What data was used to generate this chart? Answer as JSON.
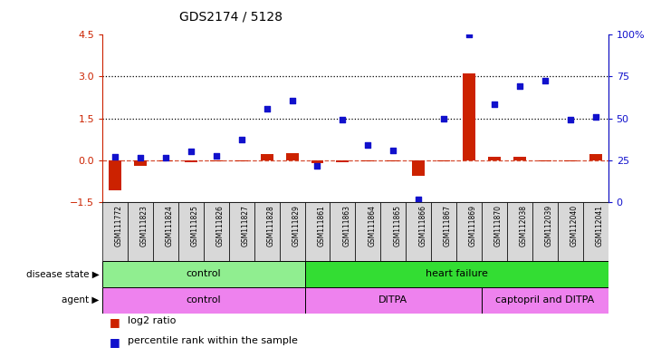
{
  "title": "GDS2174 / 5128",
  "samples": [
    "GSM111772",
    "GSM111823",
    "GSM111824",
    "GSM111825",
    "GSM111826",
    "GSM111827",
    "GSM111828",
    "GSM111829",
    "GSM111861",
    "GSM111863",
    "GSM111864",
    "GSM111865",
    "GSM111866",
    "GSM111867",
    "GSM111869",
    "GSM111870",
    "GSM112038",
    "GSM112039",
    "GSM112040",
    "GSM112041"
  ],
  "log2_ratio": [
    -1.1,
    -0.2,
    -0.05,
    -0.07,
    -0.06,
    -0.05,
    0.2,
    0.25,
    -0.1,
    -0.07,
    -0.05,
    -0.06,
    -0.55,
    -0.04,
    3.1,
    0.12,
    0.12,
    -0.04,
    -0.06,
    0.22
  ],
  "pct_rank_left": [
    0.12,
    0.1,
    0.1,
    0.3,
    0.15,
    0.75,
    1.85,
    2.15,
    -0.2,
    1.45,
    0.55,
    0.35,
    -1.4,
    1.5,
    4.5,
    2.0,
    2.65,
    2.85,
    1.45,
    1.55
  ],
  "ylim_left": [
    -1.5,
    4.5
  ],
  "left_ticks": [
    -1.5,
    0.0,
    1.5,
    3.0,
    4.5
  ],
  "right_ticks": [
    0,
    25,
    50,
    75,
    100
  ],
  "right_tick_labels": [
    "0",
    "25",
    "50",
    "75",
    "100%"
  ],
  "hlines": [
    1.5,
    3.0
  ],
  "disease_state": [
    {
      "label": "control",
      "start": 0,
      "end": 8,
      "color": "#90ee90"
    },
    {
      "label": "heart failure",
      "start": 8,
      "end": 20,
      "color": "#33dd33"
    }
  ],
  "agent": [
    {
      "label": "control",
      "start": 0,
      "end": 8,
      "color": "#ee82ee"
    },
    {
      "label": "DITPA",
      "start": 8,
      "end": 15,
      "color": "#ee82ee"
    },
    {
      "label": "captopril and DITPA",
      "start": 15,
      "end": 20,
      "color": "#ee82ee"
    }
  ],
  "bar_color_red": "#cc2200",
  "dot_color_blue": "#1111cc",
  "dashed_line_color": "#cc2200",
  "left_axis_color": "#cc2200",
  "right_axis_color": "#1111cc",
  "legend_items": [
    "log2 ratio",
    "percentile rank within the sample"
  ],
  "tick_bg_color": "#d8d8d8"
}
